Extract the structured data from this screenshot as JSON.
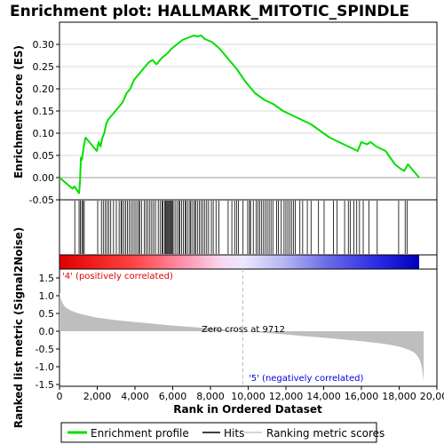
{
  "colors": {
    "es_line": "#00e000",
    "hits": "#000000",
    "metric_fill": "#bebebe",
    "pos_label": "#e00000",
    "neg_label": "#0000e0",
    "grid": "#d8d8d8"
  },
  "chart_data": [
    {
      "type": "line",
      "title": "Enrichment plot: HALLMARK_MITOTIC_SPINDLE",
      "ylabel": "Enrichment score (ES)",
      "xlim": [
        0,
        19300
      ],
      "ylim": [
        -0.05,
        0.35
      ],
      "yticks": [
        "-0.05",
        "0.00",
        "0.05",
        "0.10",
        "0.15",
        "0.20",
        "0.25",
        "0.30"
      ],
      "grid": true,
      "series": [
        {
          "name": "Enrichment profile",
          "x": [
            0,
            700,
            800,
            1050,
            1100,
            1150,
            1200,
            1300,
            1400,
            2000,
            2100,
            2200,
            2300,
            2400,
            2500,
            2600,
            2800,
            3000,
            3200,
            3400,
            3600,
            3800,
            4000,
            4200,
            4400,
            4600,
            4800,
            5000,
            5200,
            5500,
            5800,
            6000,
            6300,
            6600,
            6900,
            7200,
            7400,
            7600,
            7800,
            8200,
            8600,
            9000,
            9500,
            10000,
            10500,
            11000,
            11500,
            12000,
            12500,
            13000,
            13500,
            14000,
            14500,
            15000,
            15500,
            16000,
            16200,
            16500,
            16700,
            17000,
            17500,
            18000,
            18300,
            18500,
            18700,
            19000,
            19300
          ],
          "y": [
            0.0,
            -0.025,
            -0.02,
            -0.035,
            -0.01,
            0.045,
            0.04,
            0.07,
            0.09,
            0.06,
            0.08,
            0.07,
            0.09,
            0.1,
            0.12,
            0.13,
            0.14,
            0.15,
            0.16,
            0.17,
            0.19,
            0.2,
            0.22,
            0.23,
            0.24,
            0.25,
            0.26,
            0.265,
            0.255,
            0.27,
            0.28,
            0.29,
            0.3,
            0.31,
            0.315,
            0.32,
            0.318,
            0.32,
            0.312,
            0.305,
            0.29,
            0.27,
            0.245,
            0.215,
            0.19,
            0.175,
            0.165,
            0.15,
            0.14,
            0.13,
            0.12,
            0.105,
            0.09,
            0.08,
            0.07,
            0.06,
            0.08,
            0.075,
            0.08,
            0.07,
            0.06,
            0.03,
            0.02,
            0.015,
            0.03,
            0.015,
            0.0
          ]
        }
      ]
    },
    {
      "type": "scatter",
      "series": [
        {
          "name": "Hits",
          "x": [
            820,
            1050,
            1120,
            1200,
            1260,
            1330,
            2050,
            2250,
            2350,
            2450,
            2550,
            2650,
            2750,
            2900,
            3050,
            3200,
            3300,
            3350,
            3450,
            3550,
            3650,
            3750,
            3850,
            3950,
            4050,
            4150,
            4250,
            4300,
            4400,
            4550,
            4650,
            4750,
            4850,
            4950,
            5050,
            5150,
            5300,
            5400,
            5500,
            5550,
            5650,
            5700,
            5750,
            5800,
            5850,
            5900,
            5950,
            6000,
            6050,
            6100,
            6200,
            6300,
            6400,
            6450,
            6550,
            6650,
            6750,
            6800,
            6900,
            7000,
            7050,
            7150,
            7250,
            7300,
            7400,
            7500,
            7600,
            7700,
            7800,
            7900,
            8000,
            8150,
            8250,
            8400,
            8550,
            9050,
            9250,
            9400,
            9500,
            9600,
            9850,
            10100,
            10200,
            10250,
            10400,
            10550,
            10650,
            10750,
            10850,
            10950,
            11050,
            11150,
            11250,
            11350,
            11450,
            11650,
            11750,
            11900,
            12050,
            12150,
            12250,
            12350,
            12450,
            12550,
            12650,
            12900,
            13050,
            13300,
            13500,
            13900,
            14200,
            14700,
            14900,
            15300,
            15500,
            15600,
            15800,
            15950,
            16100,
            16300,
            16600,
            17050,
            18200,
            18550,
            18650
          ]
        }
      ]
    },
    {
      "type": "area",
      "xlabel": "Rank in Ordered Dataset",
      "ylabel": "Ranked list metric (Signal2Noise)",
      "xlim": [
        0,
        20000
      ],
      "ylim": [
        -1.55,
        1.75
      ],
      "xticks": [
        "0",
        "2,000",
        "4,000",
        "6,000",
        "8,000",
        "10,000",
        "12,000",
        "14,000",
        "16,000",
        "18,000",
        "20,000"
      ],
      "yticks": [
        "-1.5",
        "-1.0",
        "-0.5",
        "0.0",
        "0.5",
        "1.0",
        "1.5"
      ],
      "series": [
        {
          "name": "Ranking metric scores",
          "x": [
            0,
            50,
            150,
            300,
            600,
            1000,
            2000,
            3000,
            4000,
            5000,
            6000,
            7000,
            8000,
            9000,
            9712,
            10500,
            12000,
            13000,
            14000,
            15000,
            16000,
            17000,
            17500,
            18000,
            18500,
            18800,
            19000,
            19100,
            19200,
            19250,
            19300
          ],
          "y": [
            1.1,
            0.95,
            0.8,
            0.68,
            0.58,
            0.5,
            0.38,
            0.31,
            0.26,
            0.21,
            0.16,
            0.12,
            0.08,
            0.04,
            0.0,
            -0.03,
            -0.09,
            -0.14,
            -0.18,
            -0.23,
            -0.28,
            -0.34,
            -0.38,
            -0.43,
            -0.52,
            -0.6,
            -0.72,
            -0.82,
            -1.0,
            -1.2,
            -1.4
          ]
        }
      ],
      "annotations": {
        "zero_cross": "Zero cross at 9712",
        "zero_cross_rank": 9712,
        "positive": "'4' (positively correlated)",
        "negative": "'5' (negatively correlated)"
      }
    }
  ],
  "legend": {
    "items": [
      "Enrichment profile",
      "Hits",
      "Ranking metric scores"
    ]
  }
}
